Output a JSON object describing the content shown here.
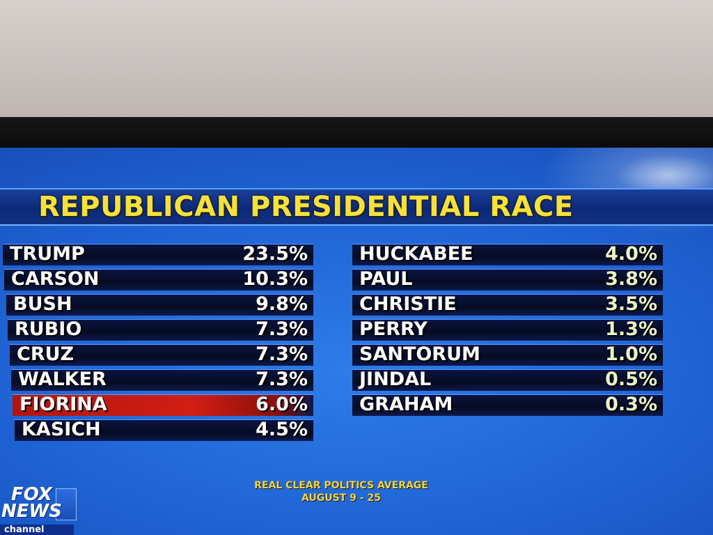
{
  "title": "REPUBLICAN PRESIDENTIAL RACE",
  "chart_data": {
    "type": "table",
    "title": "REPUBLICAN PRESIDENTIAL RACE",
    "left_column": [
      {
        "name": "TRUMP",
        "value": "23.5%"
      },
      {
        "name": "CARSON",
        "value": "10.3%"
      },
      {
        "name": "BUSH",
        "value": "9.8%"
      },
      {
        "name": "RUBIO",
        "value": "7.3%"
      },
      {
        "name": "CRUZ",
        "value": "7.3%"
      },
      {
        "name": "WALKER",
        "value": "7.3%"
      },
      {
        "name": "FIORINA",
        "value": "6.0%",
        "highlight": true
      },
      {
        "name": "KASICH",
        "value": "4.5%"
      }
    ],
    "right_column": [
      {
        "name": "HUCKABEE",
        "value": "4.0%"
      },
      {
        "name": "PAUL",
        "value": "3.8%"
      },
      {
        "name": "CHRISTIE",
        "value": "3.5%"
      },
      {
        "name": "PERRY",
        "value": "1.3%"
      },
      {
        "name": "SANTORUM",
        "value": "1.0%"
      },
      {
        "name": "JINDAL",
        "value": "0.5%"
      },
      {
        "name": "GRAHAM",
        "value": "0.3%"
      }
    ],
    "highlight_color": "#d11e14"
  },
  "source": {
    "line1": "REAL CLEAR POLITICS AVERAGE",
    "line2": "AUGUST 9 - 25"
  },
  "logo": {
    "line1": "FOX",
    "line2": "NEWS",
    "line3": "channel"
  },
  "colors": {
    "title": "#f5e13a",
    "background": "#1f63d4",
    "source": "#f3d33b"
  }
}
